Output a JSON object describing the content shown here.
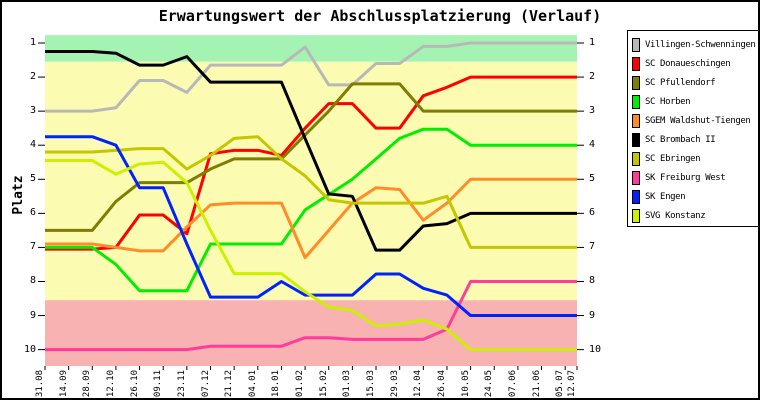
{
  "title": "Erwartungswert der Abschlussplatzierung (Verlauf)",
  "chart_data": {
    "type": "line",
    "title": "Erwartungswert der Abschlussplatzierung (Verlauf)",
    "ylabel": "Platz",
    "y_axis_inverted": true,
    "y_ticks": [
      1,
      2,
      3,
      4,
      5,
      6,
      7,
      8,
      9,
      10
    ],
    "ylim": [
      0.77,
      10.48
    ],
    "grid": false,
    "legend_position": "right",
    "x_labels": [
      "31.08",
      "14.09",
      "28.09",
      "12.10",
      "26.10",
      "09.11",
      "23.11",
      "07.12",
      "21.12",
      "04.01",
      "18.01",
      "01.02",
      "15.02",
      "01.03",
      "15.03",
      "29.03",
      "12.04",
      "26.04",
      "10.05",
      "24.05",
      "07.06",
      "21.06",
      "05.07",
      "12.07"
    ],
    "zones": [
      {
        "name": "promotion-zone",
        "from_place": 0.77,
        "to_place": 1.55,
        "color": "#A5F3B2"
      },
      {
        "name": "midfield-zone",
        "from_place": 1.55,
        "to_place": 8.55,
        "color": "#FBFBB2"
      },
      {
        "name": "relegation-zone",
        "from_place": 8.55,
        "to_place": 10.48,
        "color": "#F8B2B2"
      }
    ],
    "series": [
      {
        "name": "Villingen-Schwenningen",
        "color": "#B8B8B8",
        "values": [
          3.0,
          3.0,
          3.0,
          2.9,
          2.1,
          2.1,
          2.45,
          1.65,
          1.65,
          1.65,
          1.65,
          1.12,
          2.23,
          2.23,
          1.6,
          1.6,
          1.1,
          1.1,
          1.0,
          1.0,
          1.0,
          1.0,
          1.0,
          1.0
        ]
      },
      {
        "name": "SC Donaueschingen",
        "color": "#FF0000",
        "values": [
          7.05,
          7.05,
          7.05,
          7.0,
          6.05,
          6.05,
          6.6,
          4.25,
          4.15,
          4.15,
          4.3,
          3.5,
          2.78,
          2.78,
          3.5,
          3.5,
          2.55,
          2.3,
          2.0,
          2.0,
          2.0,
          2.0,
          2.0,
          2.0
        ]
      },
      {
        "name": "SC Pfullendorf",
        "color": "#7E7E00",
        "values": [
          6.5,
          6.5,
          6.5,
          5.65,
          5.1,
          5.1,
          5.1,
          4.7,
          4.4,
          4.4,
          4.4,
          3.7,
          3.0,
          2.2,
          2.2,
          2.2,
          3.0,
          3.0,
          3.0,
          3.0,
          3.0,
          3.0,
          3.0,
          3.0
        ]
      },
      {
        "name": "SC Horben",
        "color": "#00EE00",
        "values": [
          7.0,
          7.0,
          7.0,
          7.5,
          8.27,
          8.27,
          8.27,
          6.9,
          6.9,
          6.9,
          6.9,
          5.9,
          5.45,
          5.0,
          4.4,
          3.8,
          3.53,
          3.53,
          4.0,
          4.0,
          4.0,
          4.0,
          4.0,
          4.0
        ]
      },
      {
        "name": "SGEM Waldshut-Tiengen",
        "color": "#FF8C28",
        "values": [
          6.9,
          6.9,
          6.9,
          7.0,
          7.1,
          7.1,
          6.4,
          5.75,
          5.7,
          5.7,
          5.7,
          7.3,
          6.5,
          5.7,
          5.25,
          5.3,
          6.2,
          5.7,
          5.0,
          5.0,
          5.0,
          5.0,
          5.0,
          5.0
        ]
      },
      {
        "name": "SC Brombach II",
        "color": "#000000",
        "values": [
          1.25,
          1.25,
          1.25,
          1.3,
          1.65,
          1.65,
          1.4,
          2.15,
          2.15,
          2.15,
          2.15,
          3.8,
          5.43,
          5.5,
          7.08,
          7.08,
          6.37,
          6.3,
          6.0,
          6.0,
          6.0,
          6.0,
          6.0,
          6.0
        ]
      },
      {
        "name": "SC Ebringen",
        "color": "#C6C600",
        "values": [
          4.2,
          4.2,
          4.2,
          4.15,
          4.1,
          4.1,
          4.7,
          4.3,
          3.8,
          3.75,
          4.4,
          4.9,
          5.6,
          5.7,
          5.7,
          5.7,
          5.7,
          5.5,
          7.0,
          7.0,
          7.0,
          7.0,
          7.0,
          7.0
        ]
      },
      {
        "name": "SK Freiburg West",
        "color": "#FF3C9C",
        "values": [
          10.0,
          10.0,
          10.0,
          10.0,
          10.0,
          10.0,
          10.0,
          9.9,
          9.9,
          9.9,
          9.9,
          9.65,
          9.65,
          9.7,
          9.7,
          9.7,
          9.7,
          9.4,
          8.0,
          8.0,
          8.0,
          8.0,
          8.0,
          8.0
        ]
      },
      {
        "name": "SK Engen",
        "color": "#0022FF",
        "values": [
          3.75,
          3.75,
          3.75,
          4.0,
          5.25,
          5.25,
          6.9,
          8.46,
          8.46,
          8.46,
          8.0,
          8.4,
          8.4,
          8.4,
          7.78,
          7.78,
          8.2,
          8.4,
          9.0,
          9.0,
          9.0,
          9.0,
          9.0,
          9.0
        ]
      },
      {
        "name": "SVG Konstanz",
        "color": "#CCF000",
        "values": [
          4.45,
          4.45,
          4.45,
          4.85,
          4.55,
          4.5,
          5.1,
          6.5,
          7.77,
          7.77,
          7.77,
          8.3,
          8.75,
          8.85,
          9.3,
          9.25,
          9.13,
          9.4,
          10.0,
          10.0,
          10.0,
          10.0,
          10.0,
          10.0
        ]
      }
    ]
  }
}
